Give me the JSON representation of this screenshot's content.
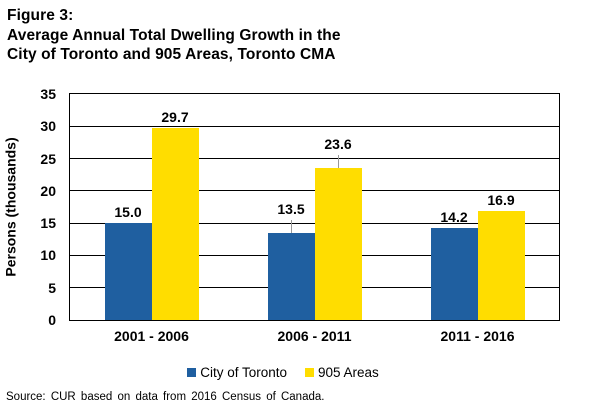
{
  "title": {
    "line1": "Figure 3:",
    "line2": "Average Annual Total Dwelling Growth in the",
    "line3": "City of Toronto and 905 Areas, Toronto CMA"
  },
  "source": "Source: CUR based on data from 2016 Census of Canada.",
  "chart_data": {
    "type": "bar",
    "title": "Average Annual Total Dwelling Growth in the City of Toronto and 905 Areas, Toronto CMA",
    "categories": [
      "2001 - 2006",
      "2006 - 2011",
      "2011 - 2016"
    ],
    "series": [
      {
        "name": "City of Toronto",
        "color": "#1F5FA0",
        "values": [
          15.0,
          13.5,
          14.2
        ]
      },
      {
        "name": "905 Areas",
        "color": "#FFDD00",
        "values": [
          29.7,
          23.6,
          16.9
        ]
      }
    ],
    "xlabel": "",
    "ylabel": "Persons (thousands)",
    "ylim": [
      0,
      35
    ],
    "ytick_step": 5,
    "grid": true,
    "value_labels": true,
    "value_label_decimals": 1,
    "label_leaders": [
      [
        false,
        true,
        false
      ],
      [
        false,
        true,
        false
      ]
    ],
    "leader_color": "#999999",
    "legend_position": "bottom",
    "gridline_color": "#000000"
  }
}
